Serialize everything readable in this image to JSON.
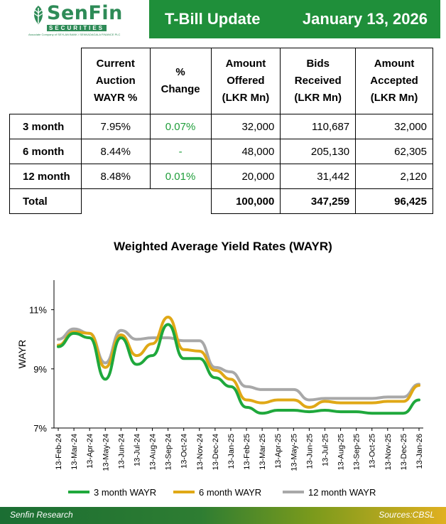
{
  "header": {
    "logo_name": "SenFin",
    "logo_sub": "SECURITIES",
    "logo_tag": "Associate Company of SEYLAN BANK / SENKADAGALA FINANCE PLC",
    "title": "T-Bill Update",
    "date": "January 13, 2026",
    "brand_color": "#1f8f3a"
  },
  "table": {
    "headers": [
      "Current Auction WAYR %",
      "% Change",
      "Amount Offered (LKR Mn)",
      "Bids Received (LKR Mn)",
      "Amount Accepted (LKR Mn)"
    ],
    "rows": [
      {
        "label": "3 month",
        "wayr": "7.95%",
        "change": "0.07%",
        "offered": "32,000",
        "bids": "110,687",
        "accepted": "32,000"
      },
      {
        "label": "6 month",
        "wayr": "8.44%",
        "change": "-",
        "offered": "48,000",
        "bids": "205,130",
        "accepted": "62,305"
      },
      {
        "label": "12 month",
        "wayr": "8.48%",
        "change": "0.01%",
        "offered": "20,000",
        "bids": "31,442",
        "accepted": "2,120"
      }
    ],
    "total": {
      "label": "Total",
      "offered": "100,000",
      "bids": "347,259",
      "accepted": "96,425"
    }
  },
  "chart_data": {
    "type": "line",
    "title": "Weighted Average Yield Rates (WAYR)",
    "ylabel": "WAYR",
    "xlabel": "",
    "ylim": [
      7,
      12
    ],
    "yticks": [
      "7%",
      "9%",
      "11%"
    ],
    "x": [
      "13-Feb-24",
      "13-Mar-24",
      "13-Apr-24",
      "13-May-24",
      "13-Jun-24",
      "13-Jul-24",
      "13-Aug-24",
      "13-Sep-24",
      "13-Oct-24",
      "13-Nov-24",
      "13-Dec-24",
      "13-Jan-25",
      "13-Feb-25",
      "13-Mar-25",
      "13-Apr-25",
      "13-May-25",
      "13-Jun-25",
      "13-Jul-25",
      "13-Aug-25",
      "13-Sep-25",
      "13-Oct-25",
      "13-Nov-25",
      "13-Dec-25",
      "13-Jan-26"
    ],
    "grid": false,
    "legend_position": "bottom",
    "series": [
      {
        "name": "3 month WAYR",
        "color": "#1fa83c",
        "values": [
          9.75,
          10.2,
          10.05,
          8.65,
          10.05,
          9.15,
          9.45,
          10.5,
          9.35,
          9.35,
          8.7,
          8.4,
          7.7,
          7.5,
          7.6,
          7.6,
          7.55,
          7.6,
          7.55,
          7.55,
          7.5,
          7.5,
          7.5,
          7.95
        ]
      },
      {
        "name": "6 month WAYR",
        "color": "#e0a816",
        "values": [
          9.8,
          10.25,
          10.2,
          9.05,
          10.15,
          9.45,
          9.85,
          10.75,
          9.65,
          9.6,
          8.95,
          8.65,
          7.95,
          7.85,
          7.95,
          7.95,
          7.7,
          7.9,
          7.85,
          7.85,
          7.85,
          7.9,
          7.9,
          8.44
        ]
      },
      {
        "name": "12 month WAYR",
        "color": "#a8a8a8",
        "values": [
          10.0,
          10.35,
          10.2,
          9.2,
          10.3,
          10.0,
          10.05,
          10.05,
          9.95,
          9.95,
          9.05,
          8.9,
          8.4,
          8.3,
          8.3,
          8.3,
          7.95,
          8.0,
          8.0,
          8.0,
          8.0,
          8.05,
          8.05,
          8.48
        ]
      }
    ]
  },
  "footer": {
    "left": "Senfin Research",
    "right": "Sources:CBSL"
  }
}
